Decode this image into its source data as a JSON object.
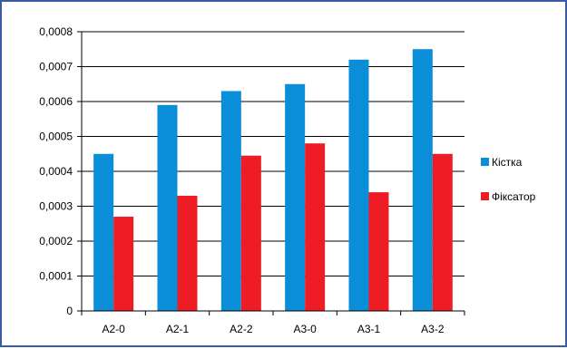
{
  "chart_data": {
    "type": "bar",
    "categories": [
      "A2-0",
      "A2-1",
      "A2-2",
      "A3-0",
      "A3-1",
      "A3-2"
    ],
    "series": [
      {
        "name": "Кістка",
        "values": [
          0.00045,
          0.00059,
          0.00063,
          0.00065,
          0.00072,
          0.00075
        ],
        "color": "#0a8ed8"
      },
      {
        "name": "Фіксатор",
        "values": [
          0.00027,
          0.00033,
          0.000445,
          0.00048,
          0.00034,
          0.00045
        ],
        "color": "#ee1c25"
      }
    ],
    "ylim": [
      0,
      0.0008
    ],
    "yticks": [
      "0",
      "0,0001",
      "0,0002",
      "0,0003",
      "0,0004",
      "0,0005",
      "0,0006",
      "0,0007",
      "0,0008"
    ],
    "grid": true,
    "legend": "right",
    "title": "",
    "xlabel": "",
    "ylabel": ""
  }
}
